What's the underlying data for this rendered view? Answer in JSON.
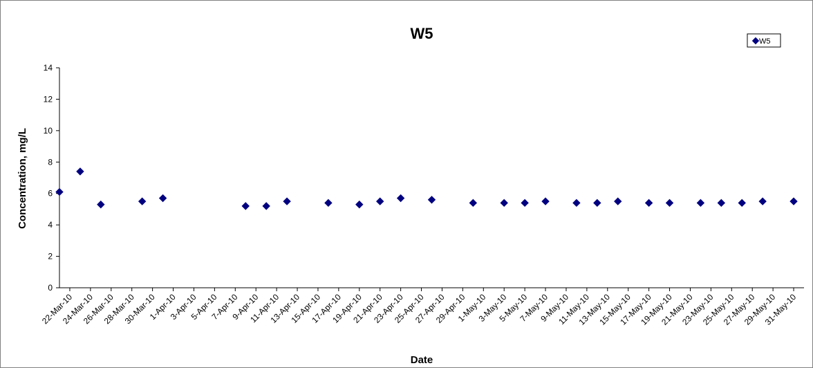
{
  "chart_data": {
    "type": "scatter",
    "title": "W5",
    "xlabel": "Date",
    "ylabel": "Concentration, mg/L",
    "xlim": [
      "2010-03-21",
      "2010-06-01"
    ],
    "ylim": [
      0,
      14
    ],
    "yticks": [
      0,
      2,
      4,
      6,
      8,
      10,
      12,
      14
    ],
    "xtick_labels": [
      "22-Mar-10",
      "24-Mar-10",
      "26-Mar-10",
      "28-Mar-10",
      "30-Mar-10",
      "1-Apr-10",
      "3-Apr-10",
      "5-Apr-10",
      "7-Apr-10",
      "9-Apr-10",
      "11-Apr-10",
      "13-Apr-10",
      "15-Apr-10",
      "17-Apr-10",
      "19-Apr-10",
      "21-Apr-10",
      "23-Apr-10",
      "25-Apr-10",
      "27-Apr-10",
      "29-Apr-10",
      "1-May-10",
      "3-May-10",
      "5-May-10",
      "7-May-10",
      "9-May-10",
      "11-May-10",
      "13-May-10",
      "15-May-10",
      "17-May-10",
      "19-May-10",
      "21-May-10",
      "23-May-10",
      "25-May-10",
      "27-May-10",
      "29-May-10",
      "31-May-10"
    ],
    "grid": false,
    "legend_position": "top-right",
    "marker": "diamond",
    "color": "#000080",
    "series": [
      {
        "name": "W5",
        "points": [
          {
            "x": "2010-03-21",
            "y": 6.1
          },
          {
            "x": "2010-03-23",
            "y": 7.4
          },
          {
            "x": "2010-03-25",
            "y": 5.3
          },
          {
            "x": "2010-03-29",
            "y": 5.5
          },
          {
            "x": "2010-03-31",
            "y": 5.7
          },
          {
            "x": "2010-04-08",
            "y": 5.2
          },
          {
            "x": "2010-04-10",
            "y": 5.2
          },
          {
            "x": "2010-04-12",
            "y": 5.5
          },
          {
            "x": "2010-04-16",
            "y": 5.4
          },
          {
            "x": "2010-04-19",
            "y": 5.3
          },
          {
            "x": "2010-04-21",
            "y": 5.5
          },
          {
            "x": "2010-04-23",
            "y": 5.7
          },
          {
            "x": "2010-04-26",
            "y": 5.6
          },
          {
            "x": "2010-04-30",
            "y": 5.4
          },
          {
            "x": "2010-05-03",
            "y": 5.4
          },
          {
            "x": "2010-05-05",
            "y": 5.4
          },
          {
            "x": "2010-05-07",
            "y": 5.5
          },
          {
            "x": "2010-05-10",
            "y": 5.4
          },
          {
            "x": "2010-05-12",
            "y": 5.4
          },
          {
            "x": "2010-05-14",
            "y": 5.5
          },
          {
            "x": "2010-05-17",
            "y": 5.4
          },
          {
            "x": "2010-05-19",
            "y": 5.4
          },
          {
            "x": "2010-05-22",
            "y": 5.4
          },
          {
            "x": "2010-05-24",
            "y": 5.4
          },
          {
            "x": "2010-05-26",
            "y": 5.4
          },
          {
            "x": "2010-05-28",
            "y": 5.5
          },
          {
            "x": "2010-05-31",
            "y": 5.5
          }
        ]
      }
    ]
  }
}
